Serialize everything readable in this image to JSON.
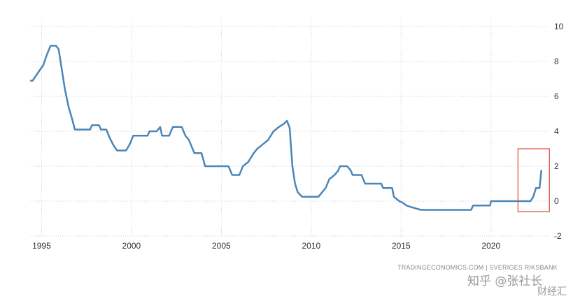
{
  "chart_data": {
    "type": "line",
    "title": "",
    "xlabel": "",
    "ylabel": "",
    "x_ticks": [
      "1995",
      "2000",
      "2005",
      "2010",
      "2015",
      "2020"
    ],
    "y_ticks": [
      "-2",
      "0",
      "2",
      "4",
      "6",
      "8",
      "10"
    ],
    "xlim": [
      1994.4,
      2023.2
    ],
    "ylim": [
      -2,
      10
    ],
    "grid": true,
    "y_axis_position": "right",
    "series": [
      {
        "name": "",
        "color": "#4a86b8",
        "points": [
          [
            1994.4,
            6.9
          ],
          [
            1994.5,
            6.9
          ],
          [
            1994.7,
            7.2
          ],
          [
            1994.9,
            7.5
          ],
          [
            1995.1,
            7.8
          ],
          [
            1995.3,
            8.4
          ],
          [
            1995.5,
            8.9
          ],
          [
            1995.8,
            8.9
          ],
          [
            1995.95,
            8.7
          ],
          [
            1996.1,
            7.7
          ],
          [
            1996.3,
            6.4
          ],
          [
            1996.5,
            5.4
          ],
          [
            1996.7,
            4.7
          ],
          [
            1996.85,
            4.1
          ],
          [
            1997.7,
            4.1
          ],
          [
            1997.8,
            4.35
          ],
          [
            1998.2,
            4.35
          ],
          [
            1998.3,
            4.1
          ],
          [
            1998.6,
            4.1
          ],
          [
            1998.8,
            3.6
          ],
          [
            1999.0,
            3.2
          ],
          [
            1999.2,
            2.9
          ],
          [
            1999.7,
            2.9
          ],
          [
            1999.9,
            3.25
          ],
          [
            2000.1,
            3.75
          ],
          [
            2000.9,
            3.75
          ],
          [
            2001.0,
            4.0
          ],
          [
            2001.4,
            4.0
          ],
          [
            2001.6,
            4.25
          ],
          [
            2001.7,
            3.75
          ],
          [
            2002.1,
            3.75
          ],
          [
            2002.3,
            4.25
          ],
          [
            2002.8,
            4.25
          ],
          [
            2003.0,
            3.75
          ],
          [
            2003.2,
            3.5
          ],
          [
            2003.5,
            2.75
          ],
          [
            2003.9,
            2.75
          ],
          [
            2004.1,
            2.0
          ],
          [
            2005.4,
            2.0
          ],
          [
            2005.6,
            1.5
          ],
          [
            2006.0,
            1.5
          ],
          [
            2006.2,
            2.0
          ],
          [
            2006.5,
            2.25
          ],
          [
            2006.8,
            2.75
          ],
          [
            2007.0,
            3.0
          ],
          [
            2007.3,
            3.25
          ],
          [
            2007.6,
            3.5
          ],
          [
            2007.9,
            4.0
          ],
          [
            2008.2,
            4.25
          ],
          [
            2008.5,
            4.45
          ],
          [
            2008.65,
            4.6
          ],
          [
            2008.8,
            4.2
          ],
          [
            2008.95,
            2.0
          ],
          [
            2009.1,
            1.0
          ],
          [
            2009.25,
            0.5
          ],
          [
            2009.5,
            0.25
          ],
          [
            2010.4,
            0.25
          ],
          [
            2010.6,
            0.5
          ],
          [
            2010.8,
            0.75
          ],
          [
            2011.0,
            1.25
          ],
          [
            2011.3,
            1.5
          ],
          [
            2011.5,
            1.75
          ],
          [
            2011.6,
            2.0
          ],
          [
            2012.0,
            2.0
          ],
          [
            2012.2,
            1.75
          ],
          [
            2012.3,
            1.5
          ],
          [
            2012.8,
            1.5
          ],
          [
            2012.9,
            1.25
          ],
          [
            2013.0,
            1.0
          ],
          [
            2013.9,
            1.0
          ],
          [
            2014.0,
            0.75
          ],
          [
            2014.5,
            0.75
          ],
          [
            2014.6,
            0.25
          ],
          [
            2014.9,
            0.0
          ],
          [
            2015.1,
            -0.1
          ],
          [
            2015.3,
            -0.25
          ],
          [
            2015.6,
            -0.35
          ],
          [
            2016.1,
            -0.5
          ],
          [
            2018.9,
            -0.5
          ],
          [
            2019.0,
            -0.25
          ],
          [
            2019.95,
            -0.25
          ],
          [
            2020.0,
            0.0
          ],
          [
            2022.2,
            0.0
          ],
          [
            2022.35,
            0.25
          ],
          [
            2022.5,
            0.75
          ],
          [
            2022.7,
            0.75
          ],
          [
            2022.8,
            1.75
          ]
        ]
      }
    ],
    "highlight_box": {
      "x_range": [
        2021.5,
        2023.25
      ],
      "y_range": [
        -0.6,
        3.0
      ],
      "color": "#e04a3a"
    },
    "source_text": "TRADINGECONOMICS.COM | SVERIGES RIKSBANK"
  },
  "watermark": {
    "text": "知乎 @张社长",
    "text_2": "财经汇"
  }
}
